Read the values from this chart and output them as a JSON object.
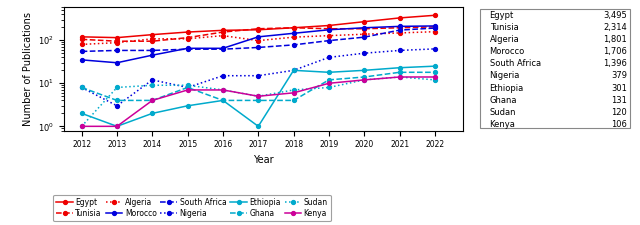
{
  "years": [
    2012,
    2013,
    2014,
    2015,
    2016,
    2017,
    2018,
    2019,
    2020,
    2021,
    2022
  ],
  "series_ordered": [
    "Egypt",
    "Tunisia",
    "Algeria",
    "Morocco",
    "South Africa",
    "Nigeria",
    "Ethiopia",
    "Ghana",
    "Sudan",
    "Kenya"
  ],
  "series": {
    "Egypt": {
      "color": "#EE0000",
      "linestyle": "solid",
      "marker": "o",
      "data": [
        120,
        115,
        135,
        155,
        170,
        175,
        195,
        220,
        270,
        330,
        380
      ]
    },
    "Tunisia": {
      "color": "#EE0000",
      "linestyle": "dashed",
      "marker": "o",
      "data": [
        105,
        95,
        95,
        115,
        155,
        185,
        195,
        185,
        185,
        195,
        205
      ]
    },
    "Algeria": {
      "color": "#EE0000",
      "linestyle": "dotted",
      "marker": "o",
      "data": [
        80,
        88,
        108,
        108,
        128,
        98,
        118,
        128,
        138,
        148,
        158
      ]
    },
    "Morocco": {
      "color": "#0000DD",
      "linestyle": "solid",
      "marker": "o",
      "data": [
        35,
        30,
        45,
        65,
        65,
        120,
        145,
        175,
        195,
        210,
        215
      ]
    },
    "South Africa": {
      "color": "#0000DD",
      "linestyle": "dashed",
      "marker": "o",
      "data": [
        55,
        58,
        58,
        62,
        62,
        68,
        78,
        98,
        118,
        172,
        192
      ]
    },
    "Nigeria": {
      "color": "#0000DD",
      "linestyle": "dotted",
      "marker": "o",
      "data": [
        8,
        3,
        12,
        8,
        15,
        15,
        20,
        40,
        50,
        58,
        63
      ]
    },
    "Ethiopia": {
      "color": "#00AACC",
      "linestyle": "solid",
      "marker": "o",
      "data": [
        2,
        1,
        2,
        3,
        4,
        1,
        20,
        18,
        20,
        23,
        25
      ]
    },
    "Ghana": {
      "color": "#00AACC",
      "linestyle": "dashed",
      "marker": "o",
      "data": [
        8,
        4,
        4,
        8,
        4,
        4,
        4,
        12,
        14,
        18,
        18
      ]
    },
    "Sudan": {
      "color": "#00AACC",
      "linestyle": "dotted",
      "marker": "o",
      "data": [
        1,
        8,
        9,
        9,
        7,
        5,
        7,
        8,
        12,
        14,
        12
      ]
    },
    "Kenya": {
      "color": "#CC0099",
      "linestyle": "solid",
      "marker": "o",
      "data": [
        1,
        1,
        4,
        7,
        7,
        5,
        6,
        10,
        12,
        14,
        14
      ]
    }
  },
  "table": {
    "Egypt": 3495,
    "Tunisia": 2314,
    "Algeria": 1801,
    "Morocco": 1706,
    "South Africa": 1396,
    "Nigeria": 379,
    "Ethiopia": 301,
    "Ghana": 131,
    "Sudan": 120,
    "Kenya": 106
  },
  "legend_row1": [
    "Egypt",
    "Tunisia",
    "Algeria",
    "Morocco",
    "South Africa"
  ],
  "legend_row2": [
    "Nigeria",
    "Ethiopia",
    "Ghana",
    "Sudan",
    "Kenya"
  ],
  "ylabel": "Number of Publications",
  "xlabel": "Year",
  "ylim": [
    0.8,
    600
  ],
  "xlim": [
    2011.5,
    2022.8
  ],
  "yticks": [
    1,
    10,
    100
  ],
  "ytick_labels": [
    "$10^0$",
    "$10^1$",
    "$10^2$"
  ]
}
